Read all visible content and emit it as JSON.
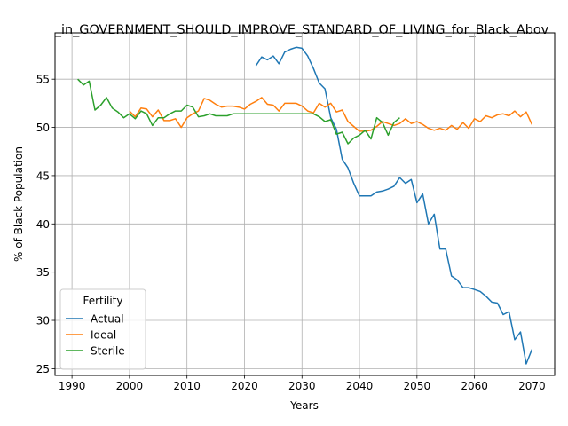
{
  "chart_data": {
    "type": "line",
    "title": "_in_GOVERNMENT_SHOULD_IMPROVE_STANDARD_OF_LIVING_for_Black_Abov",
    "xlabel": "Years",
    "ylabel": "% of Black Population",
    "xlim": [
      1987.05,
      2073.95
    ],
    "ylim": [
      24.3,
      59.8
    ],
    "xticks": [
      1990,
      2000,
      2010,
      2020,
      2030,
      2040,
      2050,
      2060,
      2070
    ],
    "yticks": [
      25,
      30,
      35,
      40,
      45,
      50,
      55
    ],
    "grid": true,
    "legend": {
      "title": "Fertility",
      "placement": "lower-left",
      "entries": [
        "Actual",
        "Ideal",
        "Sterile"
      ]
    },
    "series": [
      {
        "name": "Actual",
        "color": "#1f77b4",
        "x": [
          2022,
          2023,
          2024,
          2025,
          2026,
          2027,
          2028,
          2029,
          2030,
          2031,
          2032,
          2033,
          2034,
          2035,
          2036,
          2037,
          2038,
          2039,
          2040,
          2041,
          2042,
          2043,
          2044,
          2045,
          2046,
          2047,
          2048,
          2049,
          2050,
          2051,
          2052,
          2053,
          2054,
          2055,
          2056,
          2057,
          2058,
          2059,
          2060,
          2061,
          2062,
          2063,
          2064,
          2065,
          2066,
          2067,
          2068,
          2069,
          2070
        ],
        "y": [
          56.4,
          57.3,
          57.0,
          57.4,
          56.6,
          57.8,
          58.1,
          58.3,
          58.2,
          57.4,
          56.1,
          54.6,
          54.0,
          51.0,
          49.8,
          46.7,
          45.8,
          44.2,
          42.9,
          42.9,
          42.9,
          43.3,
          43.4,
          43.6,
          43.9,
          44.8,
          44.2,
          44.6,
          42.2,
          43.1,
          40.0,
          41.0,
          37.4,
          37.4,
          34.6,
          34.2,
          33.4,
          33.4,
          33.2,
          33.0,
          32.5,
          31.9,
          31.8,
          30.6,
          30.9,
          28.0,
          28.8,
          25.5,
          27.0
        ]
      },
      {
        "name": "Ideal",
        "color": "#ff7f0e",
        "x": [
          2000,
          2001,
          2002,
          2003,
          2004,
          2005,
          2006,
          2007,
          2008,
          2009,
          2010,
          2011,
          2012,
          2013,
          2014,
          2015,
          2016,
          2017,
          2018,
          2019,
          2020,
          2021,
          2022,
          2023,
          2024,
          2025,
          2026,
          2027,
          2028,
          2029,
          2030,
          2031,
          2032,
          2033,
          2034,
          2035,
          2036,
          2037,
          2038,
          2039,
          2040,
          2041,
          2042,
          2043,
          2044,
          2045,
          2046,
          2047,
          2048,
          2049,
          2050,
          2051,
          2052,
          2053,
          2054,
          2055,
          2056,
          2057,
          2058,
          2059,
          2060,
          2061,
          2062,
          2063,
          2064,
          2065,
          2066,
          2067,
          2068,
          2069,
          2070
        ],
        "y": [
          51.7,
          51.1,
          52.0,
          51.9,
          51.1,
          51.8,
          50.7,
          50.7,
          50.9,
          50.0,
          51.0,
          51.4,
          51.7,
          53.0,
          52.8,
          52.4,
          52.1,
          52.2,
          52.2,
          52.1,
          51.9,
          52.4,
          52.7,
          53.1,
          52.4,
          52.3,
          51.7,
          52.5,
          52.5,
          52.5,
          52.2,
          51.7,
          51.5,
          52.5,
          52.1,
          52.5,
          51.6,
          51.8,
          50.6,
          50.1,
          49.6,
          49.6,
          49.7,
          50.1,
          50.6,
          50.4,
          50.2,
          50.4,
          50.9,
          50.4,
          50.6,
          50.3,
          49.9,
          49.7,
          49.9,
          49.7,
          50.2,
          49.8,
          50.5,
          49.9,
          50.9,
          50.6,
          51.2,
          51.0,
          51.3,
          51.4,
          51.2,
          51.7,
          51.1,
          51.6,
          50.3
        ]
      },
      {
        "name": "Sterile",
        "color": "#2ca02c",
        "x": [
          1991,
          1992,
          1993,
          1994,
          1995,
          1996,
          1997,
          1998,
          1999,
          2000,
          2001,
          2002,
          2003,
          2004,
          2005,
          2006,
          2007,
          2008,
          2009,
          2010,
          2011,
          2012,
          2013,
          2014,
          2015,
          2016,
          2017,
          2018,
          2019,
          2020,
          2021,
          2022,
          2023,
          2024,
          2025,
          2026,
          2027,
          2028,
          2029,
          2030,
          2031,
          2032,
          2033,
          2034,
          2035,
          2036,
          2037,
          2038,
          2039,
          2040,
          2041,
          2042,
          2043,
          2044,
          2045,
          2046,
          2047
        ],
        "y": [
          55.0,
          54.4,
          54.8,
          51.8,
          52.3,
          53.1,
          52.0,
          51.6,
          51.0,
          51.4,
          50.9,
          51.7,
          51.4,
          50.2,
          51.0,
          51.0,
          51.4,
          51.7,
          51.7,
          52.3,
          52.1,
          51.1,
          51.2,
          51.4,
          51.2,
          51.2,
          51.2,
          51.4,
          51.4,
          51.4,
          51.4,
          51.4,
          51.4,
          51.4,
          51.4,
          51.4,
          51.4,
          51.4,
          51.4,
          51.4,
          51.4,
          51.4,
          51.1,
          50.6,
          50.8,
          49.3,
          49.5,
          48.3,
          48.9,
          49.2,
          49.7,
          48.8,
          51.0,
          50.5,
          49.2,
          50.5,
          51.0
        ]
      }
    ]
  }
}
